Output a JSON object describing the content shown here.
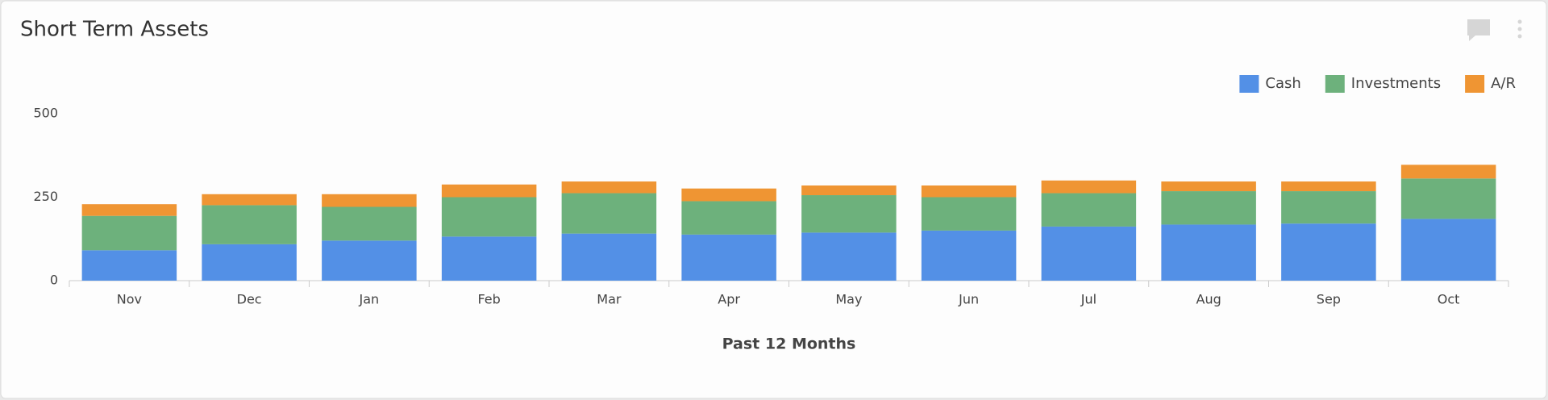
{
  "chart_data": {
    "type": "stacked-bar",
    "title": "Short Term Assets",
    "x_label": "Past 12 Months",
    "categories": [
      "Nov",
      "Dec",
      "Jan",
      "Feb",
      "Mar",
      "Apr",
      "May",
      "Jun",
      "Jul",
      "Aug",
      "Sep",
      "Oct"
    ],
    "series": [
      {
        "name": "Cash",
        "color": "#5390e6",
        "values": [
          91,
          109,
          120,
          132,
          141,
          138,
          144,
          150,
          162,
          168,
          171,
          185
        ]
      },
      {
        "name": "Investments",
        "color": "#6db17c",
        "values": [
          103,
          117,
          101,
          118,
          121,
          100,
          112,
          100,
          100,
          100,
          97,
          121
        ]
      },
      {
        "name": "A/R",
        "color": "#ef9533",
        "values": [
          35,
          33,
          38,
          38,
          35,
          38,
          29,
          35,
          38,
          29,
          29,
          41
        ]
      }
    ],
    "ylim": [
      0,
      500
    ],
    "yticks": [
      0,
      250,
      500
    ],
    "grid": false,
    "legend": "top-right"
  }
}
